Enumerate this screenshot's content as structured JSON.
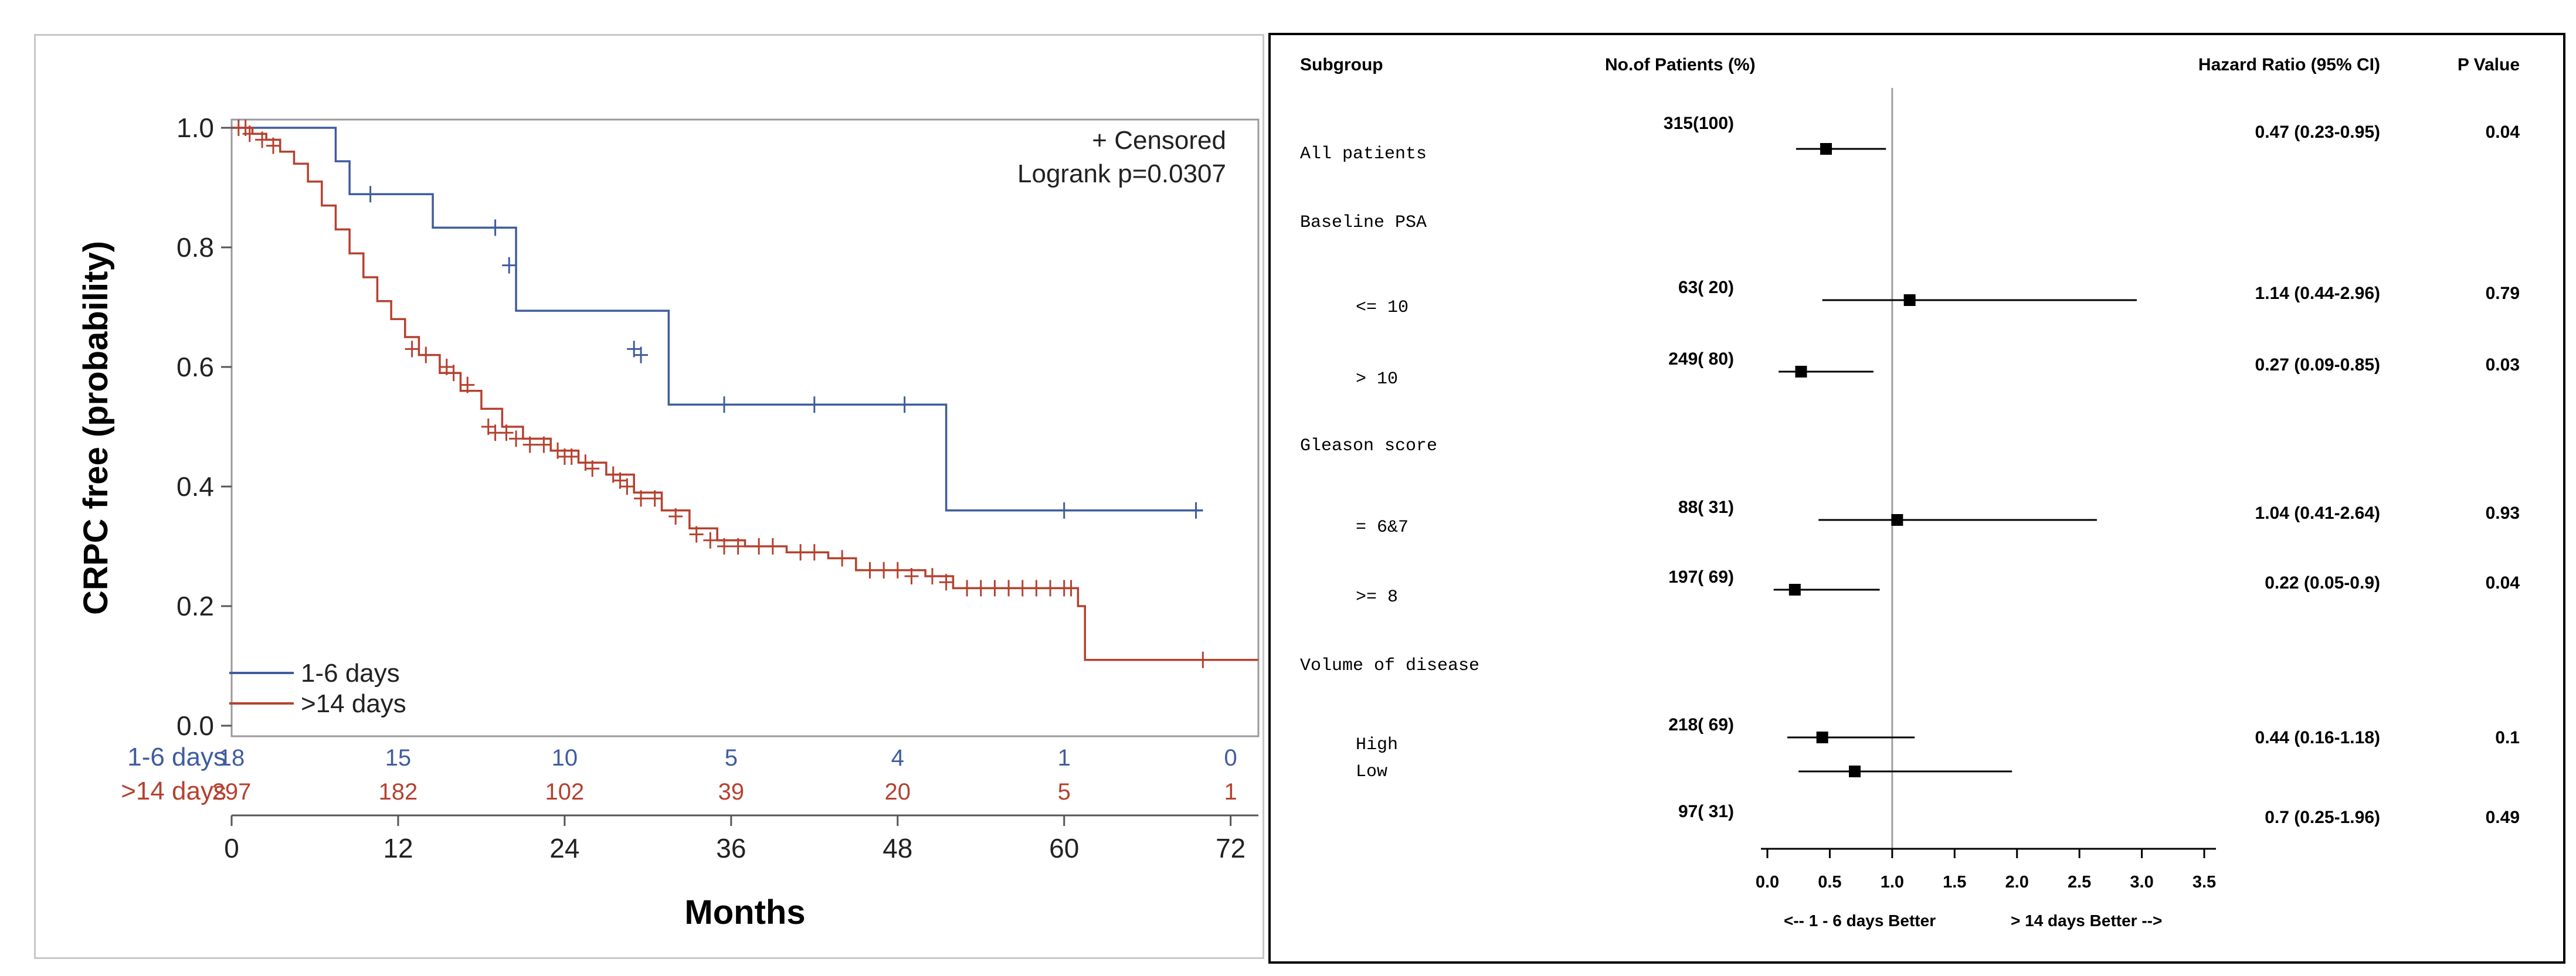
{
  "chart_data": [
    {
      "type": "line",
      "subtype": "kaplan-meier",
      "xlabel": "Months",
      "ylabel": "CRPC free (probability)",
      "xlim": [
        0,
        74
      ],
      "ylim": [
        0,
        1.0
      ],
      "xticks": [
        0,
        12,
        24,
        36,
        48,
        60,
        72
      ],
      "yticks": [
        "0.0",
        "0.2",
        "0.4",
        "0.6",
        "0.8",
        "1.0"
      ],
      "annotations": [
        "+ Censored",
        "Logrank p=0.0307"
      ],
      "legend_position": "bottom-left",
      "series": [
        {
          "name": "1-6 days",
          "color": "#3f5c9e",
          "steps": [
            [
              0,
              1.0
            ],
            [
              7.5,
              0.944
            ],
            [
              8.5,
              0.889
            ],
            [
              14.5,
              0.833
            ],
            [
              20.5,
              0.694
            ],
            [
              31.5,
              0.537
            ],
            [
              51.5,
              0.36
            ],
            [
              70,
              0.36
            ]
          ],
          "censored": [
            [
              10,
              0.889
            ],
            [
              19,
              0.833
            ],
            [
              20,
              0.77
            ],
            [
              29,
              0.63
            ],
            [
              29.5,
              0.62
            ],
            [
              35.5,
              0.537
            ],
            [
              42,
              0.537
            ],
            [
              48.5,
              0.537
            ],
            [
              60,
              0.36
            ],
            [
              69.5,
              0.36
            ]
          ],
          "at_risk": [
            18,
            15,
            10,
            5,
            4,
            1,
            0
          ]
        },
        {
          "name": ">14 days",
          "color": "#b5412f",
          "steps": [
            [
              0,
              1.0
            ],
            [
              1.5,
              0.99
            ],
            [
              2.5,
              0.98
            ],
            [
              3.5,
              0.96
            ],
            [
              4.5,
              0.94
            ],
            [
              5.5,
              0.91
            ],
            [
              6.5,
              0.87
            ],
            [
              7.5,
              0.83
            ],
            [
              8.5,
              0.79
            ],
            [
              9.5,
              0.75
            ],
            [
              10.5,
              0.71
            ],
            [
              11.5,
              0.68
            ],
            [
              12.5,
              0.65
            ],
            [
              13.5,
              0.62
            ],
            [
              15,
              0.59
            ],
            [
              16.5,
              0.56
            ],
            [
              18,
              0.53
            ],
            [
              19.5,
              0.5
            ],
            [
              21,
              0.48
            ],
            [
              23,
              0.46
            ],
            [
              25,
              0.44
            ],
            [
              27,
              0.42
            ],
            [
              29,
              0.39
            ],
            [
              31,
              0.36
            ],
            [
              33,
              0.33
            ],
            [
              35,
              0.31
            ],
            [
              37,
              0.3
            ],
            [
              40,
              0.29
            ],
            [
              43,
              0.28
            ],
            [
              45,
              0.26
            ],
            [
              50,
              0.25
            ],
            [
              52,
              0.23
            ],
            [
              61,
              0.2
            ],
            [
              61.5,
              0.11
            ],
            [
              75,
              0.11
            ]
          ],
          "censored": [
            [
              0.5,
              1.0
            ],
            [
              1,
              1.0
            ],
            [
              1.3,
              0.99
            ],
            [
              2.2,
              0.98
            ],
            [
              3,
              0.97
            ],
            [
              13,
              0.63
            ],
            [
              14,
              0.62
            ],
            [
              15.5,
              0.6
            ],
            [
              16,
              0.59
            ],
            [
              17,
              0.57
            ],
            [
              18.5,
              0.5
            ],
            [
              19,
              0.49
            ],
            [
              19.8,
              0.49
            ],
            [
              20.5,
              0.48
            ],
            [
              21.5,
              0.47
            ],
            [
              22.5,
              0.47
            ],
            [
              23.5,
              0.46
            ],
            [
              24,
              0.45
            ],
            [
              24.5,
              0.45
            ],
            [
              25.5,
              0.44
            ],
            [
              26,
              0.43
            ],
            [
              27.5,
              0.42
            ],
            [
              28,
              0.41
            ],
            [
              28.5,
              0.4
            ],
            [
              29.5,
              0.38
            ],
            [
              30.5,
              0.38
            ],
            [
              32,
              0.35
            ],
            [
              33.5,
              0.32
            ],
            [
              34.5,
              0.31
            ],
            [
              35.5,
              0.3
            ],
            [
              36.5,
              0.3
            ],
            [
              38,
              0.3
            ],
            [
              39,
              0.3
            ],
            [
              41,
              0.29
            ],
            [
              42,
              0.29
            ],
            [
              44,
              0.28
            ],
            [
              46,
              0.26
            ],
            [
              47,
              0.26
            ],
            [
              48,
              0.26
            ],
            [
              49,
              0.25
            ],
            [
              50.5,
              0.25
            ],
            [
              51.5,
              0.24
            ],
            [
              53,
              0.23
            ],
            [
              54,
              0.23
            ],
            [
              55,
              0.23
            ],
            [
              56,
              0.23
            ],
            [
              57,
              0.23
            ],
            [
              58,
              0.23
            ],
            [
              59,
              0.23
            ],
            [
              60,
              0.23
            ],
            [
              60.5,
              0.23
            ],
            [
              70,
              0.11
            ]
          ],
          "at_risk": [
            297,
            182,
            102,
            39,
            20,
            5,
            1
          ]
        }
      ]
    },
    {
      "type": "forest",
      "headers": {
        "subgroup": "Subgroup",
        "patients": "No.of Patients (%)",
        "hr": "Hazard Ratio (95% CI)",
        "p": "P Value"
      },
      "xlim": [
        0,
        3.5
      ],
      "xticks": [
        "0.0",
        "0.5",
        "1.0",
        "1.5",
        "2.0",
        "2.5",
        "3.0",
        "3.5"
      ],
      "reference_line": 1.0,
      "xlabel_left": "<-- 1 - 6 days Better",
      "xlabel_right": "> 14 days Better -->",
      "rows": [
        {
          "label": "All patients",
          "kind": "data",
          "n": "315(100)",
          "hr": 0.47,
          "lo": 0.23,
          "hi": 0.95,
          "hr_text": "0.47 (0.23-0.95)",
          "p": "0.04"
        },
        {
          "label": "Baseline PSA",
          "kind": "group"
        },
        {
          "label": "<= 10",
          "kind": "data",
          "n": "63( 20)",
          "hr": 1.14,
          "lo": 0.44,
          "hi": 2.96,
          "hr_text": "1.14 (0.44-2.96)",
          "p": "0.79"
        },
        {
          "label": "> 10",
          "kind": "data",
          "n": "249( 80)",
          "hr": 0.27,
          "lo": 0.09,
          "hi": 0.85,
          "hr_text": "0.27 (0.09-0.85)",
          "p": "0.03"
        },
        {
          "label": "Gleason score",
          "kind": "group"
        },
        {
          "label": "= 6&7",
          "kind": "data",
          "n": "88( 31)",
          "hr": 1.04,
          "lo": 0.41,
          "hi": 2.64,
          "hr_text": "1.04 (0.41-2.64)",
          "p": "0.93"
        },
        {
          "label": ">= 8",
          "kind": "data",
          "n": "197( 69)",
          "hr": 0.22,
          "lo": 0.05,
          "hi": 0.9,
          "hr_text": "0.22 (0.05-0.9)",
          "p": "0.04"
        },
        {
          "label": "Volume of disease",
          "kind": "group"
        },
        {
          "label": "High",
          "kind": "data",
          "n": "218( 69)",
          "hr": 0.44,
          "lo": 0.16,
          "hi": 1.18,
          "hr_text": "0.44 (0.16-1.18)",
          "p": "0.1"
        },
        {
          "label": "Low",
          "kind": "data",
          "n": "97( 31)",
          "hr": 0.7,
          "lo": 0.25,
          "hi": 1.96,
          "hr_text": "0.7 (0.25-1.96)",
          "p": "0.49"
        }
      ]
    }
  ]
}
